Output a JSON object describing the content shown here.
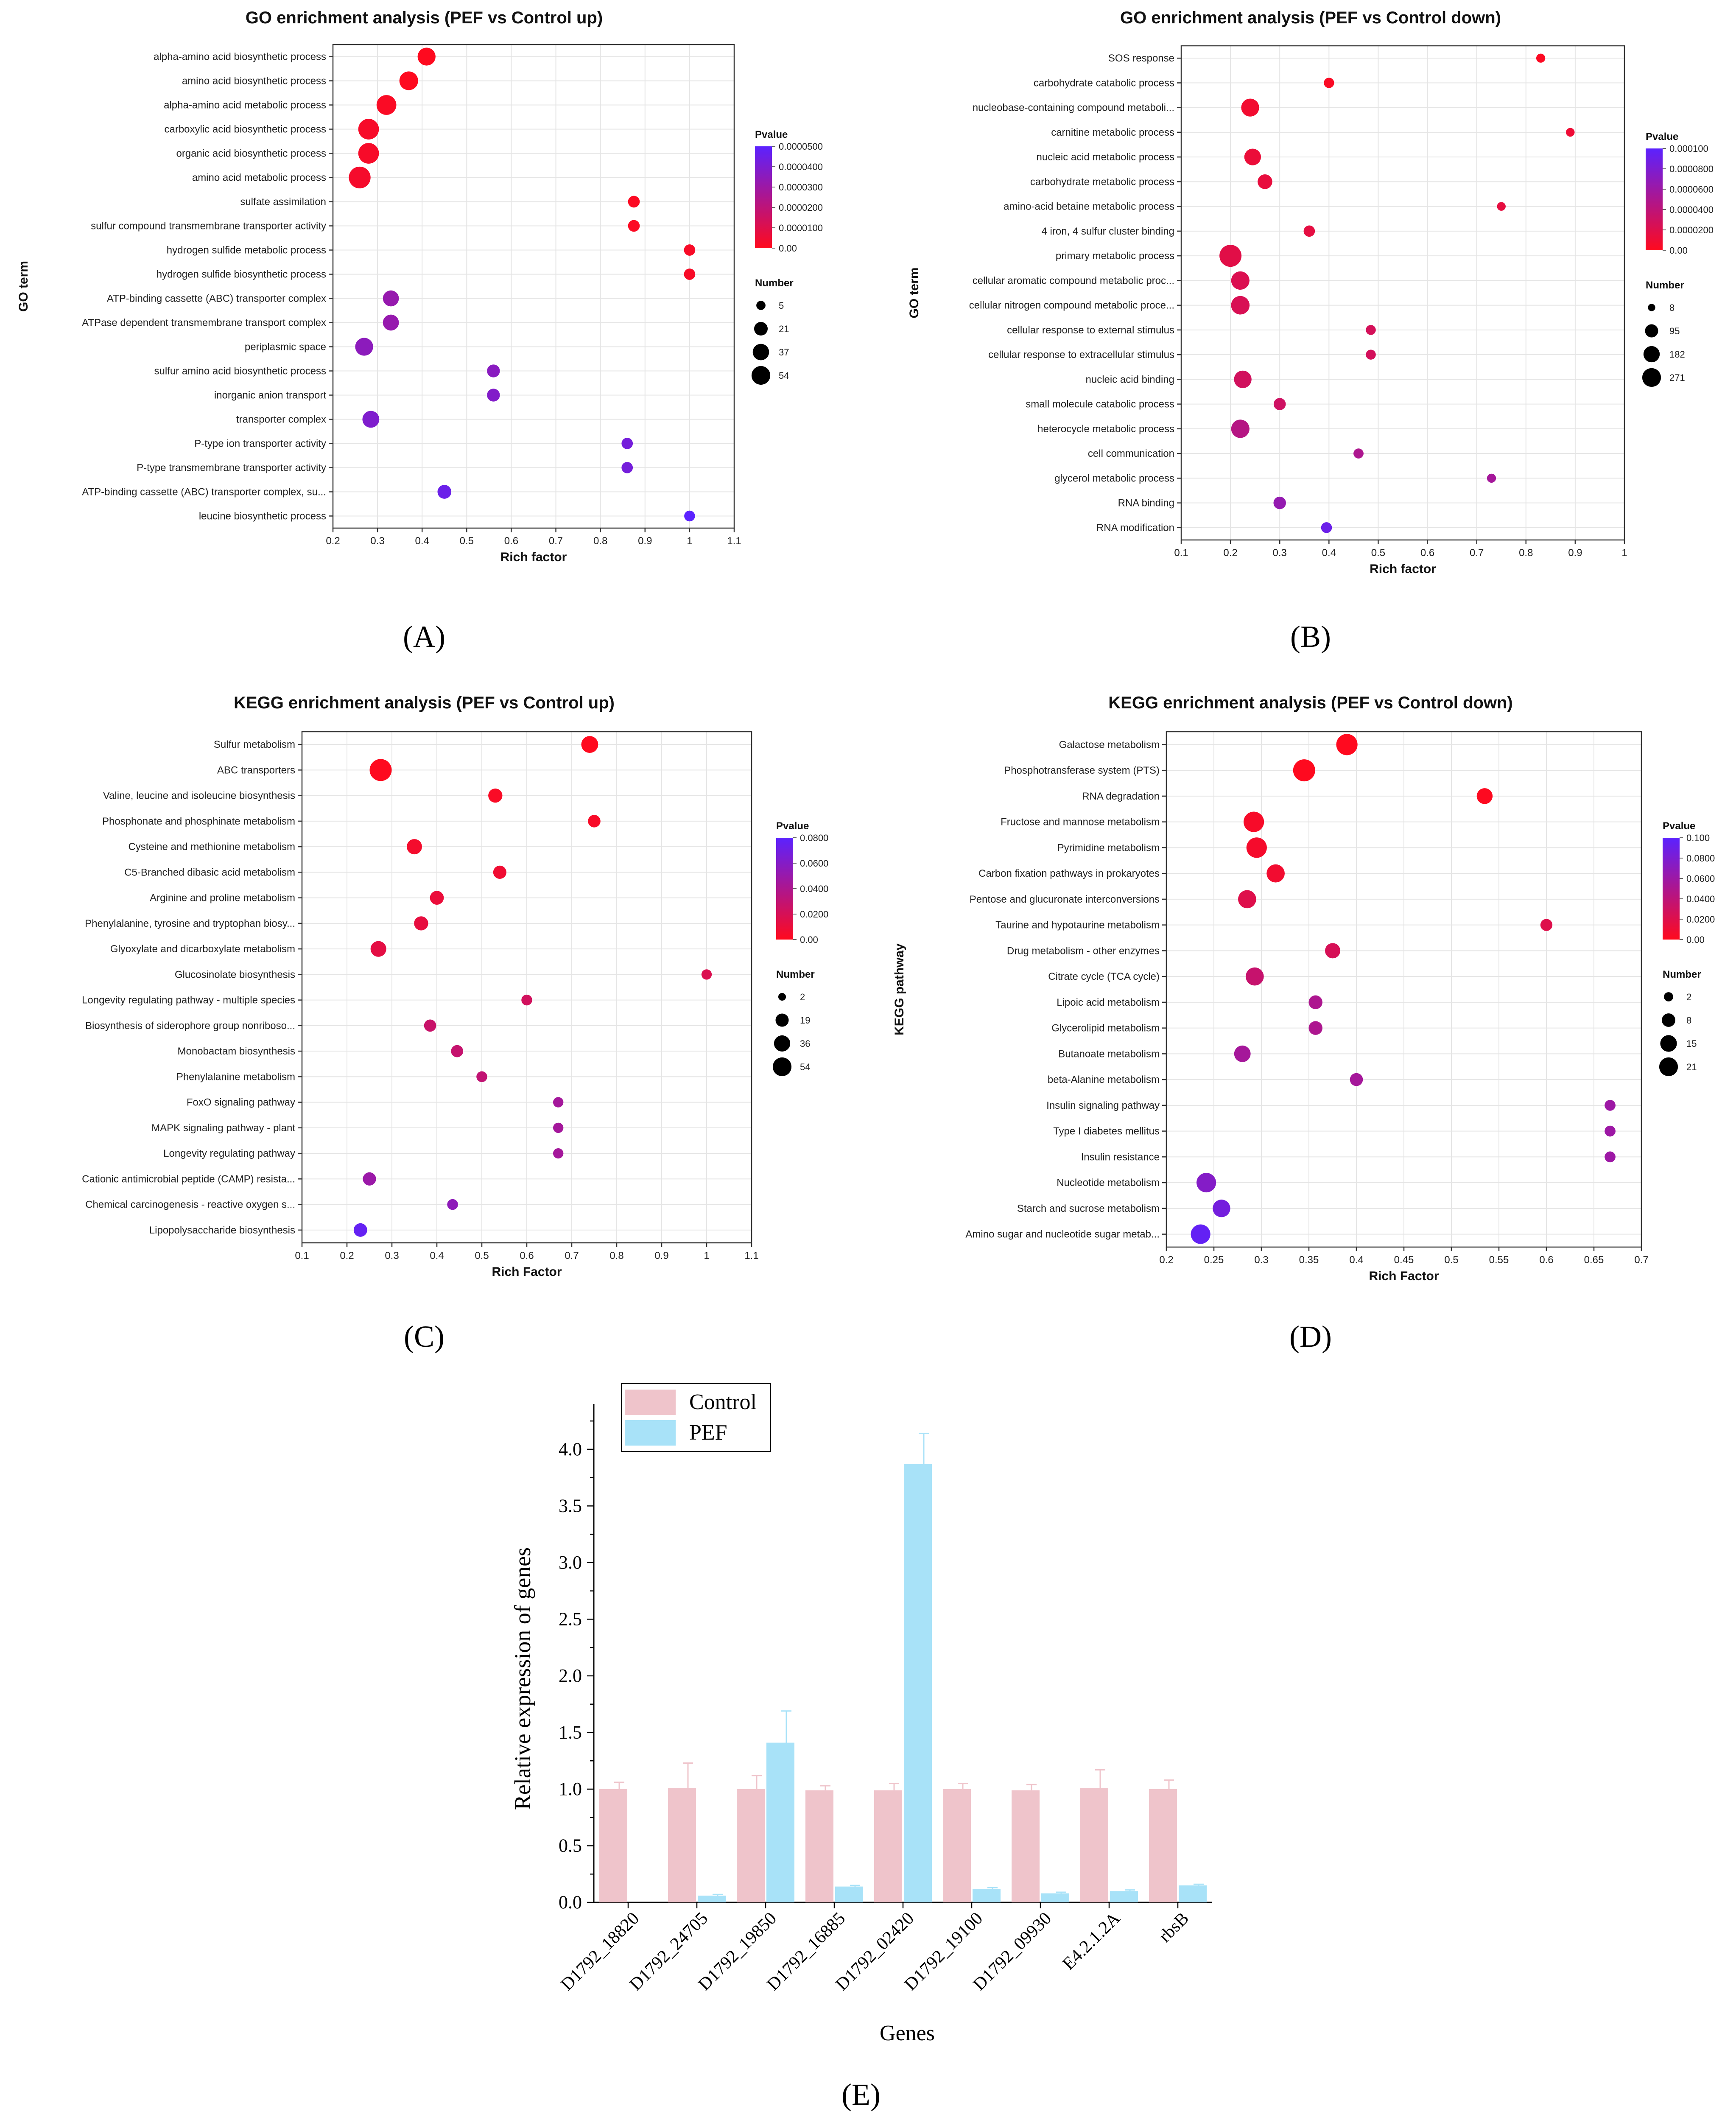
{
  "colors": {
    "pvalue_low": "#ff0a1e",
    "pvalue_high": "#5b22ff",
    "control_bar": "#efc4cb",
    "pef_bar": "#a8e2f8",
    "grid": "#e5e5e5"
  },
  "panels": {
    "A": "(A)",
    "B": "(B)",
    "C": "(C)",
    "D": "(D)",
    "E": "(E)"
  },
  "chart_data": [
    {
      "id": "A",
      "type": "scatter",
      "title": "GO enrichment analysis (PEF vs Control up)",
      "xlabel": "Rich factor",
      "ylabel": "GO term",
      "xlim": [
        0.2,
        1.1
      ],
      "xticks": [
        "0.2",
        "0.3",
        "0.4",
        "0.5",
        "0.6",
        "0.7",
        "0.8",
        "0.9",
        "1",
        "1.1"
      ],
      "grid": true,
      "legend": {
        "color_title": "Pvalue",
        "color_ticks": [
          "0.0000500",
          "0.0000400",
          "0.0000300",
          "0.0000200",
          "0.0000100",
          "0.00"
        ],
        "color_max": 5e-05,
        "size_title": "Number",
        "size_ticks": [
          "5",
          "21",
          "37",
          "54"
        ],
        "size_max": 54
      },
      "terms": [
        {
          "label": "alpha-amino acid biosynthetic process",
          "rich": 0.41,
          "number": 30,
          "p": 2e-07
        },
        {
          "label": "amino acid biosynthetic process",
          "rich": 0.37,
          "number": 34,
          "p": 2e-07
        },
        {
          "label": "alpha-amino acid metabolic process",
          "rich": 0.32,
          "number": 40,
          "p": 1.5e-06
        },
        {
          "label": "carboxylic acid biosynthetic process",
          "rich": 0.28,
          "number": 45,
          "p": 2.5e-06
        },
        {
          "label": "organic acid biosynthetic process",
          "rich": 0.28,
          "number": 45,
          "p": 2.5e-06
        },
        {
          "label": "amino acid metabolic process",
          "rich": 0.26,
          "number": 52,
          "p": 3e-06
        },
        {
          "label": "sulfate assimilation",
          "rich": 0.875,
          "number": 7,
          "p": 1e-06
        },
        {
          "label": "sulfur compound transmembrane transporter activity",
          "rich": 0.875,
          "number": 7,
          "p": 1e-06
        },
        {
          "label": "hydrogen sulfide metabolic process",
          "rich": 1.0,
          "number": 6,
          "p": 2e-06
        },
        {
          "label": "hydrogen sulfide biosynthetic process",
          "rich": 1.0,
          "number": 6,
          "p": 2e-06
        },
        {
          "label": "ATP-binding cassette (ABC) transporter complex",
          "rich": 0.33,
          "number": 21,
          "p": 3.2e-05
        },
        {
          "label": "ATPase dependent transmembrane transport complex",
          "rich": 0.33,
          "number": 21,
          "p": 3.2e-05
        },
        {
          "label": "periplasmic space",
          "rich": 0.27,
          "number": 30,
          "p": 3.5e-05
        },
        {
          "label": "sulfur amino acid biosynthetic process",
          "rich": 0.56,
          "number": 10,
          "p": 3.6e-05
        },
        {
          "label": "inorganic anion transport",
          "rich": 0.56,
          "number": 10,
          "p": 3.8e-05
        },
        {
          "label": "transporter complex",
          "rich": 0.285,
          "number": 25,
          "p": 3.9e-05
        },
        {
          "label": "P-type ion transporter activity",
          "rich": 0.86,
          "number": 6,
          "p": 4.2e-05
        },
        {
          "label": "P-type transmembrane transporter activity",
          "rich": 0.86,
          "number": 6,
          "p": 4.2e-05
        },
        {
          "label": "ATP-binding cassette (ABC) transporter complex, su...",
          "rich": 0.45,
          "number": 13,
          "p": 4.5e-05
        },
        {
          "label": "leucine biosynthetic process",
          "rich": 1.0,
          "number": 5,
          "p": 5e-05
        }
      ]
    },
    {
      "id": "B",
      "type": "scatter",
      "title": "GO enrichment analysis (PEF vs Control down)",
      "xlabel": "Rich factor",
      "ylabel": "GO term",
      "xlim": [
        0.1,
        1.0
      ],
      "xticks": [
        "0.1",
        "0.2",
        "0.3",
        "0.4",
        "0.5",
        "0.6",
        "0.7",
        "0.8",
        "0.9",
        "1"
      ],
      "grid": true,
      "legend": {
        "color_title": "Pvalue",
        "color_ticks": [
          "0.000100",
          "0.0000800",
          "0.0000600",
          "0.0000400",
          "0.0000200",
          "0.00"
        ],
        "color_max": 0.0001,
        "size_title": "Number",
        "size_ticks": [
          "8",
          "95",
          "182",
          "271"
        ],
        "size_max": 271
      },
      "terms": [
        {
          "label": "SOS response",
          "rich": 0.83,
          "number": 10,
          "p": 2e-06
        },
        {
          "label": "carbohydrate catabolic process",
          "rich": 0.4,
          "number": 20,
          "p": 3e-06
        },
        {
          "label": "nucleobase-containing compound metaboli...",
          "rich": 0.24,
          "number": 150,
          "p": 8e-06
        },
        {
          "label": "carnitine metabolic process",
          "rich": 0.89,
          "number": 8,
          "p": 1e-05
        },
        {
          "label": "nucleic acid metabolic process",
          "rich": 0.245,
          "number": 120,
          "p": 1.2e-05
        },
        {
          "label": "carbohydrate metabolic process",
          "rich": 0.27,
          "number": 80,
          "p": 1.4e-05
        },
        {
          "label": "amino-acid betaine metabolic process",
          "rich": 0.75,
          "number": 8,
          "p": 1.5e-05
        },
        {
          "label": "4 iron, 4 sulfur cluster binding",
          "rich": 0.36,
          "number": 30,
          "p": 1.6e-05
        },
        {
          "label": "primary metabolic process",
          "rich": 0.2,
          "number": 271,
          "p": 1.8e-05
        },
        {
          "label": "cellular aromatic compound metabolic proc...",
          "rich": 0.22,
          "number": 160,
          "p": 2.2e-05
        },
        {
          "label": "cellular nitrogen compound metabolic proce...",
          "rich": 0.22,
          "number": 165,
          "p": 2.4e-05
        },
        {
          "label": "cellular response to external stimulus",
          "rich": 0.485,
          "number": 17,
          "p": 2.6e-05
        },
        {
          "label": "cellular response to extracellular stimulus",
          "rich": 0.485,
          "number": 17,
          "p": 2.7e-05
        },
        {
          "label": "nucleic acid binding",
          "rich": 0.225,
          "number": 140,
          "p": 2.8e-05
        },
        {
          "label": "small molecule catabolic process",
          "rich": 0.3,
          "number": 40,
          "p": 3e-05
        },
        {
          "label": "heterocycle metabolic process",
          "rich": 0.22,
          "number": 160,
          "p": 4.5e-05
        },
        {
          "label": "cell communication",
          "rich": 0.46,
          "number": 18,
          "p": 5e-05
        },
        {
          "label": "glycerol metabolic process",
          "rich": 0.73,
          "number": 10,
          "p": 5.5e-05
        },
        {
          "label": "RNA binding",
          "rich": 0.3,
          "number": 45,
          "p": 6.5e-05
        },
        {
          "label": "RNA modification",
          "rich": 0.395,
          "number": 25,
          "p": 9e-05
        }
      ]
    },
    {
      "id": "C",
      "type": "scatter",
      "title": "KEGG enrichment analysis (PEF vs Control up)",
      "xlabel": "Rich Factor",
      "ylabel": "KEGG pathway",
      "xlim": [
        0.1,
        1.1
      ],
      "xticks": [
        "0.1",
        "0.2",
        "0.3",
        "0.4",
        "0.5",
        "0.6",
        "0.7",
        "0.8",
        "0.9",
        "1",
        "1.1"
      ],
      "grid": true,
      "legend": {
        "color_title": "Pvalue",
        "color_ticks": [
          "0.0800",
          "0.0600",
          "0.0400",
          "0.0200",
          "0.00"
        ],
        "color_max": 0.09,
        "size_title": "Number",
        "size_ticks": [
          "2",
          "19",
          "36",
          "54"
        ],
        "size_max": 54
      },
      "terms": [
        {
          "label": "Sulfur metabolism",
          "rich": 0.74,
          "number": 25,
          "p": 0.0002
        },
        {
          "label": "ABC transporters",
          "rich": 0.275,
          "number": 54,
          "p": 0.0003
        },
        {
          "label": "Valine, leucine and isoleucine biosynthesis",
          "rich": 0.53,
          "number": 14,
          "p": 0.003
        },
        {
          "label": "Phosphonate and phosphinate metabolism",
          "rich": 0.75,
          "number": 9,
          "p": 0.004
        },
        {
          "label": "Cysteine and methionine metabolism",
          "rich": 0.35,
          "number": 18,
          "p": 0.006
        },
        {
          "label": "C5-Branched dibasic acid metabolism",
          "rich": 0.54,
          "number": 11,
          "p": 0.008
        },
        {
          "label": "Arginine and proline metabolism",
          "rich": 0.4,
          "number": 13,
          "p": 0.011
        },
        {
          "label": "Phenylalanine, tyrosine and tryptophan biosy...",
          "rich": 0.365,
          "number": 14,
          "p": 0.013
        },
        {
          "label": "Glyoxylate and dicarboxylate metabolism",
          "rich": 0.27,
          "number": 20,
          "p": 0.015
        },
        {
          "label": "Glucosinolate biosynthesis",
          "rich": 1.0,
          "number": 4,
          "p": 0.02
        },
        {
          "label": "Longevity regulating pathway - multiple species",
          "rich": 0.6,
          "number": 5,
          "p": 0.025
        },
        {
          "label": "Biosynthesis of siderophore group nonriboso...",
          "rich": 0.385,
          "number": 8,
          "p": 0.03
        },
        {
          "label": "Monobactam biosynthesis",
          "rich": 0.445,
          "number": 8,
          "p": 0.032
        },
        {
          "label": "Phenylalanine metabolism",
          "rich": 0.5,
          "number": 5,
          "p": 0.034
        },
        {
          "label": "FoxO signaling pathway",
          "rich": 0.67,
          "number": 4,
          "p": 0.05
        },
        {
          "label": "MAPK signaling pathway - plant",
          "rich": 0.67,
          "number": 4,
          "p": 0.05
        },
        {
          "label": "Longevity regulating pathway",
          "rich": 0.67,
          "number": 4,
          "p": 0.05
        },
        {
          "label": "Cationic antimicrobial peptide (CAMP) resista...",
          "rich": 0.25,
          "number": 11,
          "p": 0.055
        },
        {
          "label": "Chemical carcinogenesis - reactive oxygen s...",
          "rich": 0.435,
          "number": 5,
          "p": 0.062
        },
        {
          "label": "Lipopolysaccharide biosynthesis",
          "rich": 0.23,
          "number": 12,
          "p": 0.085
        }
      ]
    },
    {
      "id": "D",
      "type": "scatter",
      "title": "KEGG enrichment analysis (PEF vs Control down)",
      "xlabel": "Rich Factor",
      "ylabel": "KEGG pathway",
      "xlim": [
        0.2,
        0.7
      ],
      "xticks": [
        "0.2",
        "0.25",
        "0.3",
        "0.35",
        "0.4",
        "0.45",
        "0.5",
        "0.55",
        "0.6",
        "0.65",
        "0.7"
      ],
      "grid": true,
      "legend": {
        "color_title": "Pvalue",
        "color_ticks": [
          "0.100",
          "0.0800",
          "0.0600",
          "0.0400",
          "0.0200",
          "0.00"
        ],
        "color_max": 0.1,
        "size_title": "Number",
        "size_ticks": [
          "2",
          "8",
          "15",
          "21"
        ],
        "size_max": 21
      },
      "terms": [
        {
          "label": "Galactose metabolism",
          "rich": 0.39,
          "number": 19,
          "p": 0.0003
        },
        {
          "label": "Phosphotransferase system (PTS)",
          "rich": 0.345,
          "number": 21,
          "p": 0.0005
        },
        {
          "label": "RNA degradation",
          "rich": 0.535,
          "number": 8,
          "p": 0.001
        },
        {
          "label": "Fructose and mannose metabolism",
          "rich": 0.292,
          "number": 17,
          "p": 0.005
        },
        {
          "label": "Pyrimidine metabolism",
          "rich": 0.295,
          "number": 17,
          "p": 0.006
        },
        {
          "label": "Carbon fixation pathways in prokaryotes",
          "rich": 0.315,
          "number": 12,
          "p": 0.008
        },
        {
          "label": "Pentose and glucuronate interconversions",
          "rich": 0.285,
          "number": 12,
          "p": 0.02
        },
        {
          "label": "Taurine and hypotaurine metabolism",
          "rich": 0.6,
          "number": 3,
          "p": 0.02
        },
        {
          "label": "Drug metabolism - other enzymes",
          "rich": 0.375,
          "number": 7,
          "p": 0.025
        },
        {
          "label": "Citrate cycle (TCA cycle)",
          "rich": 0.293,
          "number": 12,
          "p": 0.035
        },
        {
          "label": "Lipoic acid metabolism",
          "rich": 0.357,
          "number": 5,
          "p": 0.05
        },
        {
          "label": "Glycerolipid metabolism",
          "rich": 0.357,
          "number": 5,
          "p": 0.05
        },
        {
          "label": "Butanoate metabolism",
          "rich": 0.28,
          "number": 9,
          "p": 0.055
        },
        {
          "label": "beta-Alanine metabolism",
          "rich": 0.4,
          "number": 4,
          "p": 0.055
        },
        {
          "label": "Insulin signaling pathway",
          "rich": 0.667,
          "number": 2,
          "p": 0.06
        },
        {
          "label": "Type I diabetes mellitus",
          "rich": 0.667,
          "number": 2,
          "p": 0.06
        },
        {
          "label": "Insulin resistance",
          "rich": 0.667,
          "number": 2,
          "p": 0.06
        },
        {
          "label": "Nucleotide metabolism",
          "rich": 0.242,
          "number": 15,
          "p": 0.075
        },
        {
          "label": "Starch and sucrose metabolism",
          "rich": 0.258,
          "number": 11,
          "p": 0.085
        },
        {
          "label": "Amino sugar and nucleotide sugar metab...",
          "rich": 0.236,
          "number": 15,
          "p": 0.095
        }
      ]
    },
    {
      "id": "E",
      "type": "bar",
      "xlabel": "Genes",
      "ylabel": "Relative expression of genes",
      "ylim": [
        0,
        4.4
      ],
      "yticks": [
        "0.0",
        "0.5",
        "1.0",
        "1.5",
        "2.0",
        "2.5",
        "3.0",
        "3.5",
        "4.0"
      ],
      "categories": [
        "D1792_18820",
        "D1792_24705",
        "D1792_19850",
        "D1792_16885",
        "D1792_02420",
        "D1792_19100",
        "D1792_09930",
        "E4.2.1.2A",
        "rbsB"
      ],
      "legend": {
        "position": "top-left"
      },
      "series": [
        {
          "name": "Control",
          "values": [
            1.0,
            1.01,
            1.0,
            0.99,
            0.99,
            1.0,
            0.99,
            1.01,
            1.0
          ],
          "errors": [
            0.06,
            0.22,
            0.12,
            0.04,
            0.06,
            0.05,
            0.05,
            0.16,
            0.08
          ]
        },
        {
          "name": "PEF",
          "values": [
            0.0,
            0.06,
            1.41,
            0.14,
            3.87,
            0.12,
            0.08,
            0.1,
            0.15
          ],
          "errors": [
            0.0,
            0.01,
            0.28,
            0.01,
            0.27,
            0.01,
            0.01,
            0.01,
            0.01
          ]
        }
      ]
    }
  ]
}
